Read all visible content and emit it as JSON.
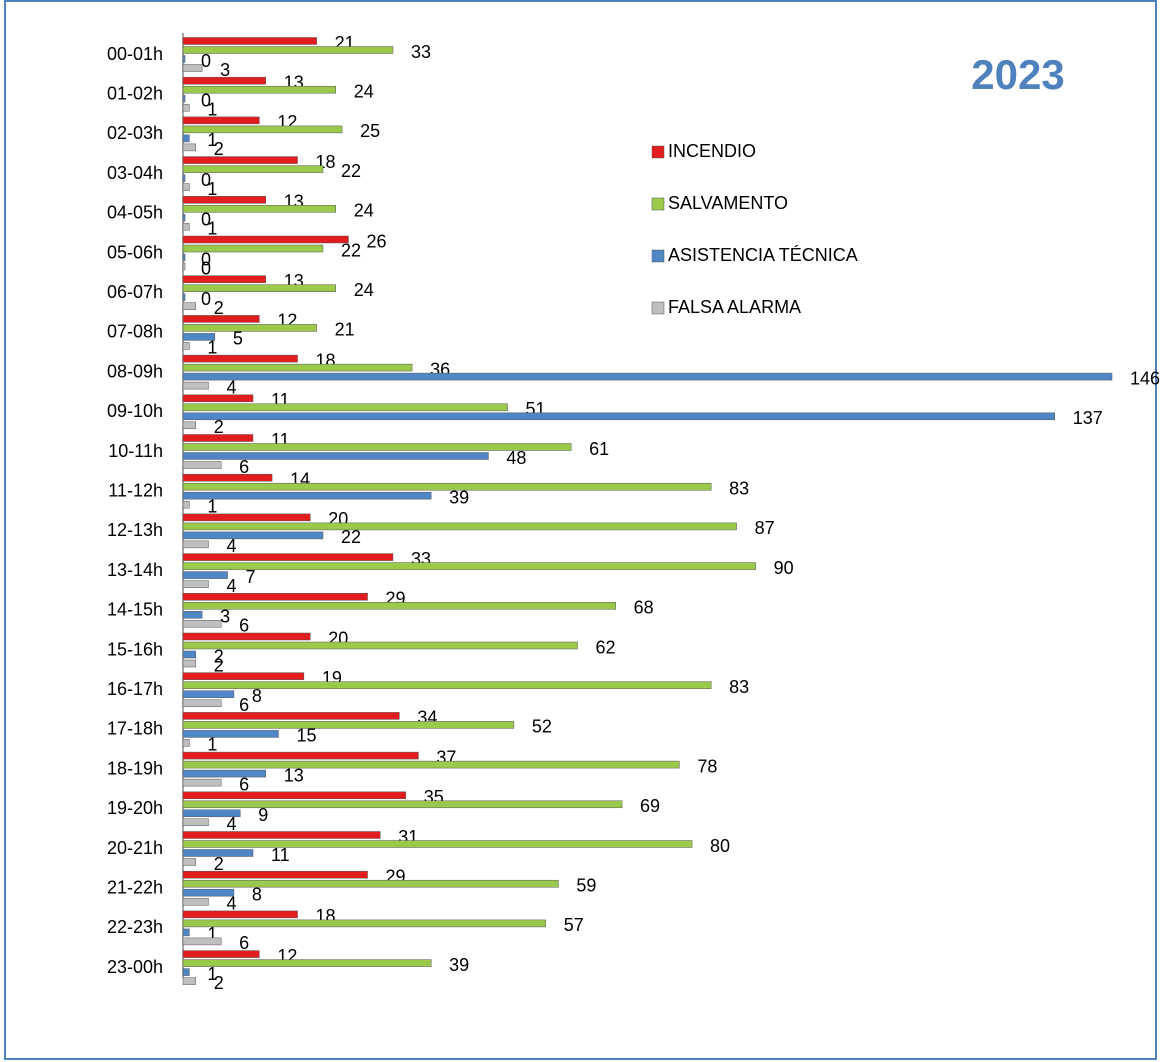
{
  "chart_data": {
    "type": "hbar",
    "annotation": "2023",
    "categories": [
      "00-01h",
      "01-02h",
      "02-03h",
      "03-04h",
      "04-05h",
      "05-06h",
      "06-07h",
      "07-08h",
      "08-09h",
      "09-10h",
      "10-11h",
      "11-12h",
      "12-13h",
      "13-14h",
      "14-15h",
      "15-16h",
      "16-17h",
      "17-18h",
      "18-19h",
      "19-20h",
      "20-21h",
      "21-22h",
      "22-23h",
      "23-00h"
    ],
    "series": [
      {
        "name": "INCENDIO",
        "color": "#e31d1d",
        "values": [
          21,
          13,
          12,
          18,
          13,
          26,
          13,
          12,
          18,
          11,
          11,
          14,
          20,
          33,
          29,
          20,
          19,
          34,
          37,
          35,
          31,
          29,
          18,
          12
        ]
      },
      {
        "name": "SALVAMENTO",
        "color": "#9bc94a",
        "values": [
          33,
          24,
          25,
          22,
          24,
          22,
          24,
          21,
          36,
          51,
          61,
          83,
          87,
          90,
          68,
          62,
          83,
          52,
          78,
          69,
          80,
          59,
          57,
          39
        ]
      },
      {
        "name": "ASISTENCIA TÉCNICA",
        "color": "#4f86c6",
        "values": [
          0,
          0,
          1,
          0,
          0,
          0,
          0,
          5,
          146,
          137,
          48,
          39,
          22,
          7,
          3,
          2,
          8,
          15,
          13,
          9,
          11,
          8,
          1,
          1
        ]
      },
      {
        "name": "FALSA ALARMA",
        "color": "#bfbfbf",
        "values": [
          3,
          1,
          2,
          1,
          1,
          0,
          2,
          1,
          4,
          2,
          6,
          1,
          4,
          4,
          6,
          2,
          6,
          1,
          6,
          4,
          2,
          4,
          6,
          2
        ]
      }
    ],
    "xlim": [
      0,
      146
    ],
    "legend": "upper-right"
  }
}
